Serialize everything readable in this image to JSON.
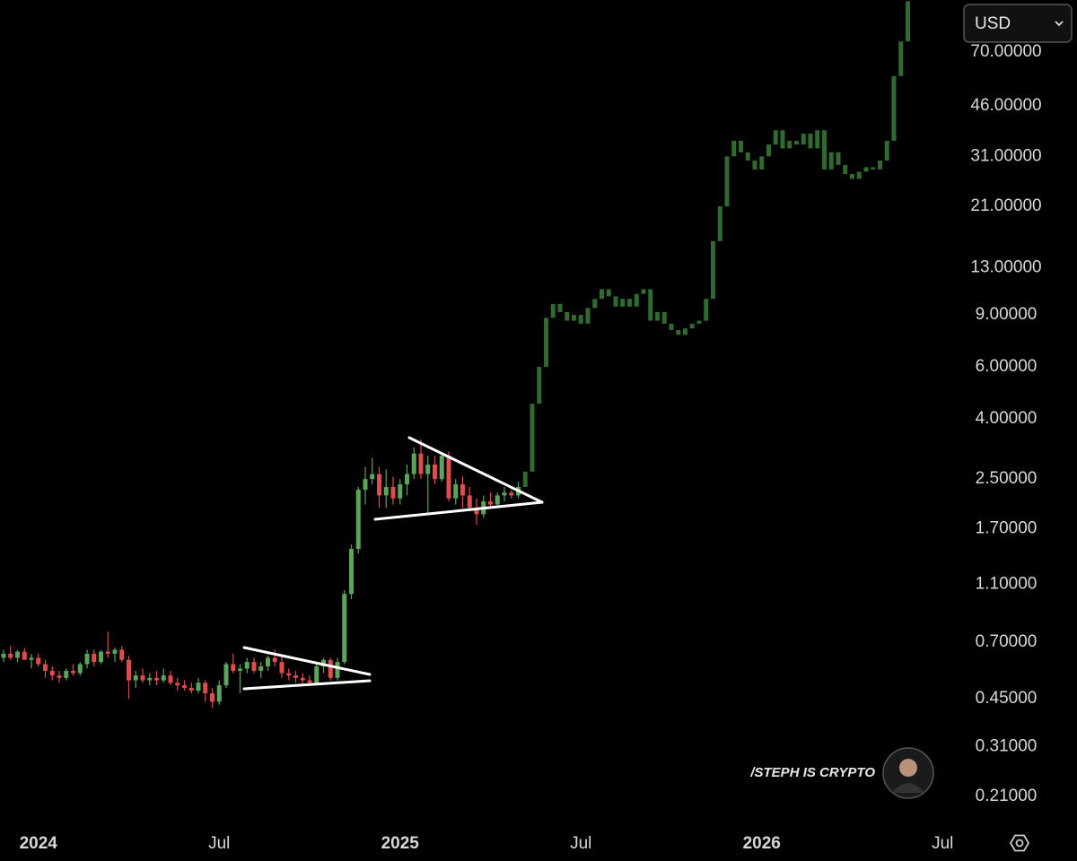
{
  "chart_data": {
    "type": "candlestick",
    "log_scale": true,
    "categories": [
      null,
      null,
      null,
      null,
      null,
      "2024",
      null,
      null,
      null,
      null,
      null,
      null,
      null,
      null,
      null,
      null,
      null,
      null,
      null,
      null,
      null,
      null,
      null,
      null,
      null,
      null,
      null,
      null,
      null,
      null,
      null,
      "Jul",
      null,
      null,
      null,
      null,
      null,
      null,
      null,
      null,
      null,
      null,
      null,
      null,
      null,
      null,
      null,
      null,
      null,
      null,
      null,
      null,
      null,
      null,
      null,
      null,
      null,
      "2025",
      null,
      null,
      null,
      null,
      null,
      null,
      null,
      null,
      null,
      null,
      null,
      null,
      null,
      null,
      null,
      null,
      null,
      null,
      null,
      null,
      null,
      null,
      null,
      null,
      null,
      "Jul",
      null,
      null,
      null,
      null,
      null,
      null,
      null,
      null,
      null,
      null,
      null,
      null,
      null,
      null,
      null,
      null,
      null,
      null,
      null,
      null,
      null,
      null,
      null,
      null,
      null,
      "2026",
      null,
      null,
      null,
      null,
      null,
      null,
      null,
      null,
      null,
      null,
      null,
      null,
      null,
      null,
      null,
      null,
      null,
      null,
      null,
      null,
      null,
      null,
      null,
      null,
      null,
      "Jul"
    ],
    "ylim": [
      0.174,
      105
    ],
    "yticks": [
      {
        "value": 70,
        "label": "70.00000"
      },
      {
        "value": 46,
        "label": "46.00000"
      },
      {
        "value": 31,
        "label": "31.00000"
      },
      {
        "value": 21,
        "label": "21.00000"
      },
      {
        "value": 13,
        "label": "13.00000"
      },
      {
        "value": 9,
        "label": "9.00000"
      },
      {
        "value": 6,
        "label": "6.00000"
      },
      {
        "value": 4,
        "label": "4.00000"
      },
      {
        "value": 2.5,
        "label": "2.50000"
      },
      {
        "value": 1.7,
        "label": "1.70000"
      },
      {
        "value": 1.1,
        "label": "1.10000"
      },
      {
        "value": 0.7,
        "label": "0.70000"
      },
      {
        "value": 0.45,
        "label": "0.45000"
      },
      {
        "value": 0.31,
        "label": "0.31000"
      },
      {
        "value": 0.21,
        "label": "0.21000"
      }
    ],
    "series": [
      {
        "color_up": "#5aa55a",
        "color_down": "#e04c4c",
        "open": [
          0.62,
          0.64,
          0.62,
          0.65,
          0.61,
          0.62,
          0.59,
          0.56,
          0.54,
          0.53,
          0.56,
          0.55,
          0.59,
          0.64,
          0.6,
          0.65,
          0.64,
          0.66,
          0.61,
          0.52,
          0.54,
          0.52,
          0.53,
          0.52,
          0.54,
          0.51,
          0.5,
          0.49,
          0.48,
          0.51,
          0.47,
          0.44,
          0.5,
          0.59,
          0.56,
          0.57,
          0.6,
          0.56,
          0.58,
          0.62,
          0.6,
          0.55,
          0.54,
          0.53,
          0.52,
          0.51,
          0.58,
          0.61,
          0.53,
          0.6,
          1.02,
          1.45,
          2.3,
          2.5,
          2.6,
          2.2,
          2.35,
          2.15,
          2.4,
          2.6,
          3.05,
          2.6,
          2.8,
          2.5,
          3.0,
          2.15,
          2.4,
          2.2,
          2.0,
          1.9,
          2.1,
          2.05,
          2.2,
          2.25,
          2.2,
          null,
          null,
          null,
          null,
          null,
          null,
          null,
          null,
          null,
          null,
          null,
          null,
          null,
          null,
          null,
          null,
          null,
          null,
          null,
          null,
          null,
          null,
          null,
          null,
          null,
          null,
          null,
          null,
          null,
          null,
          null,
          null,
          null,
          null,
          null,
          null,
          null,
          null,
          null,
          null,
          null,
          null,
          null,
          null,
          null,
          null,
          null,
          null,
          null,
          null,
          null,
          null,
          null,
          null,
          null,
          null,
          null,
          null,
          null,
          null,
          null
        ],
        "high": [
          0.66,
          0.68,
          0.66,
          0.67,
          0.64,
          0.64,
          0.61,
          0.58,
          0.56,
          0.57,
          0.59,
          0.6,
          0.66,
          0.66,
          0.66,
          0.76,
          0.67,
          0.68,
          0.63,
          0.56,
          0.57,
          0.55,
          0.56,
          0.57,
          0.56,
          0.53,
          0.52,
          0.51,
          0.53,
          0.52,
          0.49,
          0.52,
          0.6,
          0.64,
          0.59,
          0.62,
          0.62,
          0.6,
          0.63,
          0.66,
          0.63,
          0.57,
          0.56,
          0.55,
          0.54,
          0.59,
          0.62,
          0.62,
          0.62,
          1.05,
          1.5,
          2.35,
          2.75,
          2.95,
          2.75,
          2.7,
          2.55,
          2.5,
          2.8,
          3.2,
          3.4,
          3.0,
          3.0,
          3.05,
          3.1,
          2.5,
          2.55,
          2.35,
          2.15,
          2.2,
          2.25,
          2.25,
          2.35,
          2.3,
          2.45,
          null,
          null,
          null,
          null,
          null,
          null,
          null,
          null,
          null,
          null,
          null,
          null,
          null,
          null,
          null,
          null,
          null,
          null,
          null,
          null,
          null,
          null,
          null,
          null,
          null,
          null,
          null,
          null,
          null,
          null,
          null,
          null,
          null,
          null,
          null,
          null,
          null,
          null,
          null,
          null,
          null,
          null,
          null,
          null,
          null,
          null,
          null,
          null,
          null,
          null,
          null,
          null,
          null,
          null,
          null,
          null,
          null,
          null,
          null,
          null,
          null
        ],
        "low": [
          0.6,
          0.61,
          0.6,
          0.61,
          0.57,
          0.58,
          0.53,
          0.52,
          0.51,
          0.52,
          0.54,
          0.54,
          0.57,
          0.58,
          0.59,
          0.62,
          0.6,
          0.6,
          0.45,
          0.49,
          0.51,
          0.5,
          0.5,
          0.51,
          0.5,
          0.48,
          0.48,
          0.47,
          0.47,
          0.44,
          0.42,
          0.43,
          0.49,
          0.55,
          0.47,
          0.55,
          0.55,
          0.53,
          0.56,
          0.58,
          0.53,
          0.52,
          0.51,
          0.5,
          0.5,
          0.5,
          0.55,
          0.52,
          0.52,
          0.59,
          0.98,
          1.4,
          2.05,
          2.4,
          2.0,
          2.0,
          2.05,
          2.05,
          2.2,
          2.5,
          2.5,
          1.9,
          2.4,
          2.45,
          2.1,
          2.05,
          2.0,
          1.95,
          1.75,
          1.85,
          2.0,
          2.0,
          2.1,
          2.15,
          2.15,
          null,
          null,
          null,
          null,
          null,
          null,
          null,
          null,
          null,
          null,
          null,
          null,
          null,
          null,
          null,
          null,
          null,
          null,
          null,
          null,
          null,
          null,
          null,
          null,
          null,
          null,
          null,
          null,
          null,
          null,
          null,
          null,
          null,
          null,
          null,
          null,
          null,
          null,
          null,
          null,
          null,
          null,
          null,
          null,
          null,
          null,
          null,
          null,
          null,
          null,
          null,
          null,
          null,
          null,
          null,
          null,
          null,
          null,
          null,
          null,
          null
        ],
        "close": [
          0.64,
          0.62,
          0.65,
          0.61,
          0.62,
          0.59,
          0.56,
          0.54,
          0.53,
          0.56,
          0.55,
          0.59,
          0.64,
          0.6,
          0.65,
          0.64,
          0.66,
          0.61,
          0.52,
          0.54,
          0.52,
          0.53,
          0.52,
          0.54,
          0.51,
          0.5,
          0.49,
          0.48,
          0.51,
          0.47,
          0.44,
          0.5,
          0.59,
          0.56,
          0.57,
          0.6,
          0.56,
          0.58,
          0.62,
          0.6,
          0.55,
          0.54,
          0.53,
          0.52,
          0.51,
          0.58,
          0.61,
          0.53,
          0.6,
          1.02,
          1.45,
          2.3,
          2.5,
          2.6,
          2.2,
          2.35,
          2.15,
          2.4,
          2.6,
          3.05,
          2.6,
          2.8,
          2.5,
          3.0,
          2.15,
          2.4,
          2.2,
          2.0,
          1.9,
          2.1,
          2.05,
          2.2,
          2.25,
          2.2,
          2.35,
          null,
          null,
          null,
          null,
          null,
          null,
          null,
          null,
          null,
          null,
          null,
          null,
          null,
          null,
          null,
          null,
          null,
          null,
          null,
          null,
          null,
          null,
          null,
          null,
          null,
          null,
          null,
          null,
          null,
          null,
          null,
          null,
          null,
          null,
          null,
          null,
          null,
          null,
          null,
          null,
          null,
          null,
          null,
          null,
          null,
          null,
          null,
          null,
          null,
          null,
          null,
          null,
          null,
          null,
          null,
          null,
          null,
          null,
          null,
          null,
          null
        ]
      },
      {
        "color": "#2f6a2f",
        "open": [
          null,
          null,
          null,
          null,
          null,
          null,
          null,
          null,
          null,
          null,
          null,
          null,
          null,
          null,
          null,
          null,
          null,
          null,
          null,
          null,
          null,
          null,
          null,
          null,
          null,
          null,
          null,
          null,
          null,
          null,
          null,
          null,
          null,
          null,
          null,
          null,
          null,
          null,
          null,
          null,
          null,
          null,
          null,
          null,
          null,
          null,
          null,
          null,
          null,
          null,
          null,
          null,
          null,
          null,
          null,
          null,
          null,
          null,
          null,
          null,
          null,
          null,
          null,
          null,
          null,
          null,
          null,
          null,
          null,
          null,
          null,
          null,
          null,
          null,
          null,
          2.35,
          2.65,
          4.5,
          6.0,
          8.8,
          9.8,
          9.2,
          8.6,
          9.0,
          8.4,
          9.5,
          10.2,
          11.0,
          10.4,
          9.6,
          10.2,
          9.6,
          10.6,
          11.0,
          8.6,
          9.2,
          8.4,
          8.0,
          7.7,
          8.1,
          8.4,
          8.6,
          10.2,
          16,
          21,
          31,
          35,
          32,
          30,
          28,
          31,
          34,
          38,
          33,
          35,
          34,
          37,
          33,
          38,
          28,
          32,
          29,
          27,
          26,
          27.5,
          28.5,
          28,
          30,
          35,
          58,
          76,
          null,
          null,
          null,
          null,
          null
        ],
        "close": [
          null,
          null,
          null,
          null,
          null,
          null,
          null,
          null,
          null,
          null,
          null,
          null,
          null,
          null,
          null,
          null,
          null,
          null,
          null,
          null,
          null,
          null,
          null,
          null,
          null,
          null,
          null,
          null,
          null,
          null,
          null,
          null,
          null,
          null,
          null,
          null,
          null,
          null,
          null,
          null,
          null,
          null,
          null,
          null,
          null,
          null,
          null,
          null,
          null,
          null,
          null,
          null,
          null,
          null,
          null,
          null,
          null,
          null,
          null,
          null,
          null,
          null,
          null,
          null,
          null,
          null,
          null,
          null,
          null,
          null,
          null,
          null,
          null,
          null,
          null,
          2.65,
          4.5,
          6.0,
          8.8,
          9.8,
          9.2,
          8.6,
          9.0,
          8.4,
          9.5,
          10.2,
          11.0,
          10.4,
          9.6,
          10.2,
          9.6,
          10.6,
          11.0,
          8.6,
          9.2,
          8.4,
          8.0,
          7.7,
          8.1,
          8.4,
          8.6,
          10.2,
          16,
          21,
          31,
          35,
          32,
          30,
          28,
          31,
          34,
          38,
          33,
          35,
          34,
          37,
          33,
          38,
          28,
          32,
          29,
          27,
          26,
          27.5,
          28.5,
          28,
          30,
          35,
          58,
          76,
          104,
          null,
          null,
          null,
          null,
          null
        ]
      }
    ]
  },
  "currency_selector": "USD",
  "watermark": "/STEPH IS CRYPTO"
}
